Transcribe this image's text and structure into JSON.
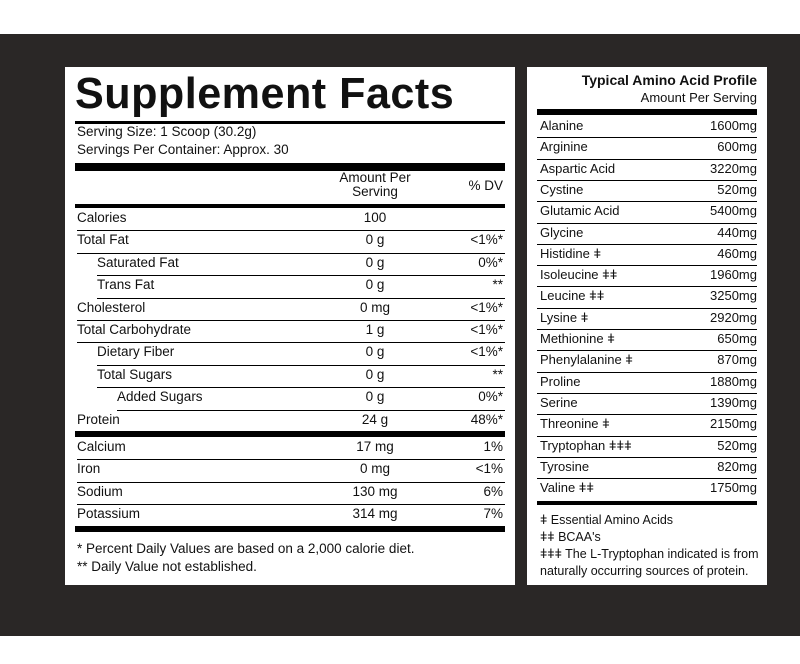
{
  "supplement_facts": {
    "title": "Supplement Facts",
    "serving_size": "Serving Size: 1 Scoop (30.2g)",
    "servings_per_container": "Servings Per Container: Approx. 30",
    "col_amount_line1": "Amount Per",
    "col_amount_line2": "Serving",
    "col_dv": "% DV",
    "rows": [
      {
        "name": "Calories",
        "amount": "100",
        "dv": ""
      },
      {
        "name": "Total Fat",
        "amount": "0 g",
        "dv": "<1%*"
      },
      {
        "name": "Saturated Fat",
        "amount": "0 g",
        "dv": "0%*"
      },
      {
        "name": "Trans Fat",
        "amount": "0 g",
        "dv": "**"
      },
      {
        "name": "Cholesterol",
        "amount": "0 mg",
        "dv": "<1%*"
      },
      {
        "name": "Total Carbohydrate",
        "amount": "1 g",
        "dv": "<1%*"
      },
      {
        "name": "Dietary Fiber",
        "amount": "0 g",
        "dv": "<1%*"
      },
      {
        "name": "Total Sugars",
        "amount": "0 g",
        "dv": "**"
      },
      {
        "name": "Added Sugars",
        "amount": "0 g",
        "dv": "0%*"
      },
      {
        "name": "Protein",
        "amount": "24 g",
        "dv": "48%*"
      },
      {
        "name": "Calcium",
        "amount": "17 mg",
        "dv": "1%"
      },
      {
        "name": "Iron",
        "amount": "0 mg",
        "dv": "<1%"
      },
      {
        "name": "Sodium",
        "amount": "130 mg",
        "dv": "6%"
      },
      {
        "name": "Potassium",
        "amount": "314 mg",
        "dv": "7%"
      }
    ],
    "footnote1": "* Percent Daily Values are based on a 2,000 calorie diet.",
    "footnote2": "** Daily Value not established."
  },
  "amino_profile": {
    "title": "Typical Amino Acid Profile",
    "subtitle": "Amount Per Serving",
    "rows": [
      {
        "name": "Alanine",
        "value": "1600mg"
      },
      {
        "name": "Arginine",
        "value": "600mg"
      },
      {
        "name": "Aspartic Acid",
        "value": "3220mg"
      },
      {
        "name": "Cystine",
        "value": "520mg"
      },
      {
        "name": "Glutamic Acid",
        "value": "5400mg"
      },
      {
        "name": "Glycine",
        "value": "440mg"
      },
      {
        "name": "Histidine ǂ",
        "value": "460mg"
      },
      {
        "name": "Isoleucine ǂǂ",
        "value": "1960mg"
      },
      {
        "name": "Leucine ǂǂ",
        "value": "3250mg"
      },
      {
        "name": "Lysine ǂ",
        "value": "2920mg"
      },
      {
        "name": "Methionine ǂ",
        "value": "650mg"
      },
      {
        "name": "Phenylalanine ǂ",
        "value": "870mg"
      },
      {
        "name": "Proline",
        "value": "1880mg"
      },
      {
        "name": "Serine",
        "value": "1390mg"
      },
      {
        "name": "Threonine ǂ",
        "value": "2150mg"
      },
      {
        "name": "Tryptophan ǂǂǂ",
        "value": "520mg"
      },
      {
        "name": "Tyrosine",
        "value": "820mg"
      },
      {
        "name": "Valine ǂǂ",
        "value": "1750mg"
      }
    ],
    "notes": [
      "ǂ Essential Amino Acids",
      "ǂǂ BCAA's",
      "ǂǂǂ The L-Tryptophan indicated is from",
      "naturally occurring sources of protein."
    ]
  }
}
